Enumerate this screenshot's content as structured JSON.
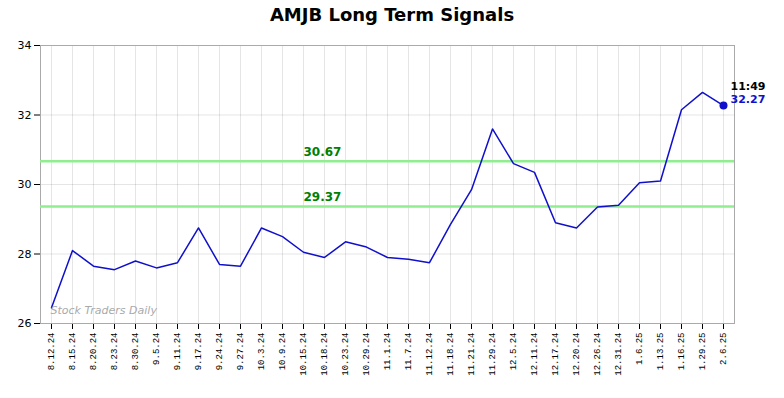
{
  "chart_data": {
    "type": "line",
    "title": "AMJB Long Term Signals",
    "categories": [
      "8.12.24",
      "8.15.24",
      "8.20.24",
      "8.23.24",
      "8.30.24",
      "9.5.24",
      "9.11.24",
      "9.17.24",
      "9.24.24",
      "9.27.24",
      "10.3.24",
      "10.9.24",
      "10.15.24",
      "10.18.24",
      "10.23.24",
      "10.29.24",
      "11.1.24",
      "11.7.24",
      "11.12.24",
      "11.18.24",
      "11.21.24",
      "11.29.24",
      "12.5.24",
      "12.11.24",
      "12.17.24",
      "12.20.24",
      "12.26.24",
      "12.31.24",
      "1.6.25",
      "1.13.25",
      "1.16.25",
      "1.29.25",
      "2.6.25"
    ],
    "values": [
      26.45,
      28.1,
      27.65,
      27.55,
      27.8,
      27.6,
      27.75,
      28.75,
      27.7,
      27.65,
      28.75,
      28.5,
      28.05,
      27.9,
      28.35,
      28.2,
      27.9,
      27.85,
      27.75,
      28.85,
      29.85,
      31.6,
      30.6,
      30.35,
      28.9,
      28.75,
      29.35,
      29.4,
      30.05,
      30.1,
      32.15,
      32.65,
      32.27
    ],
    "color": "#1010CC",
    "ylim": [
      26,
      34
    ],
    "yticks": [
      26,
      28,
      30,
      32,
      34
    ],
    "grid": true,
    "hlines": [
      {
        "value": 30.67,
        "color": "#90EE90",
        "label_color": "#008000"
      },
      {
        "value": 29.37,
        "color": "#90EE90",
        "label_color": "#008000"
      }
    ],
    "annotations": [
      {
        "text": "11:49",
        "color": "#000000"
      },
      {
        "text": "32.27",
        "color": "#1010CC"
      }
    ],
    "watermark": "Stock Traders Daily"
  }
}
